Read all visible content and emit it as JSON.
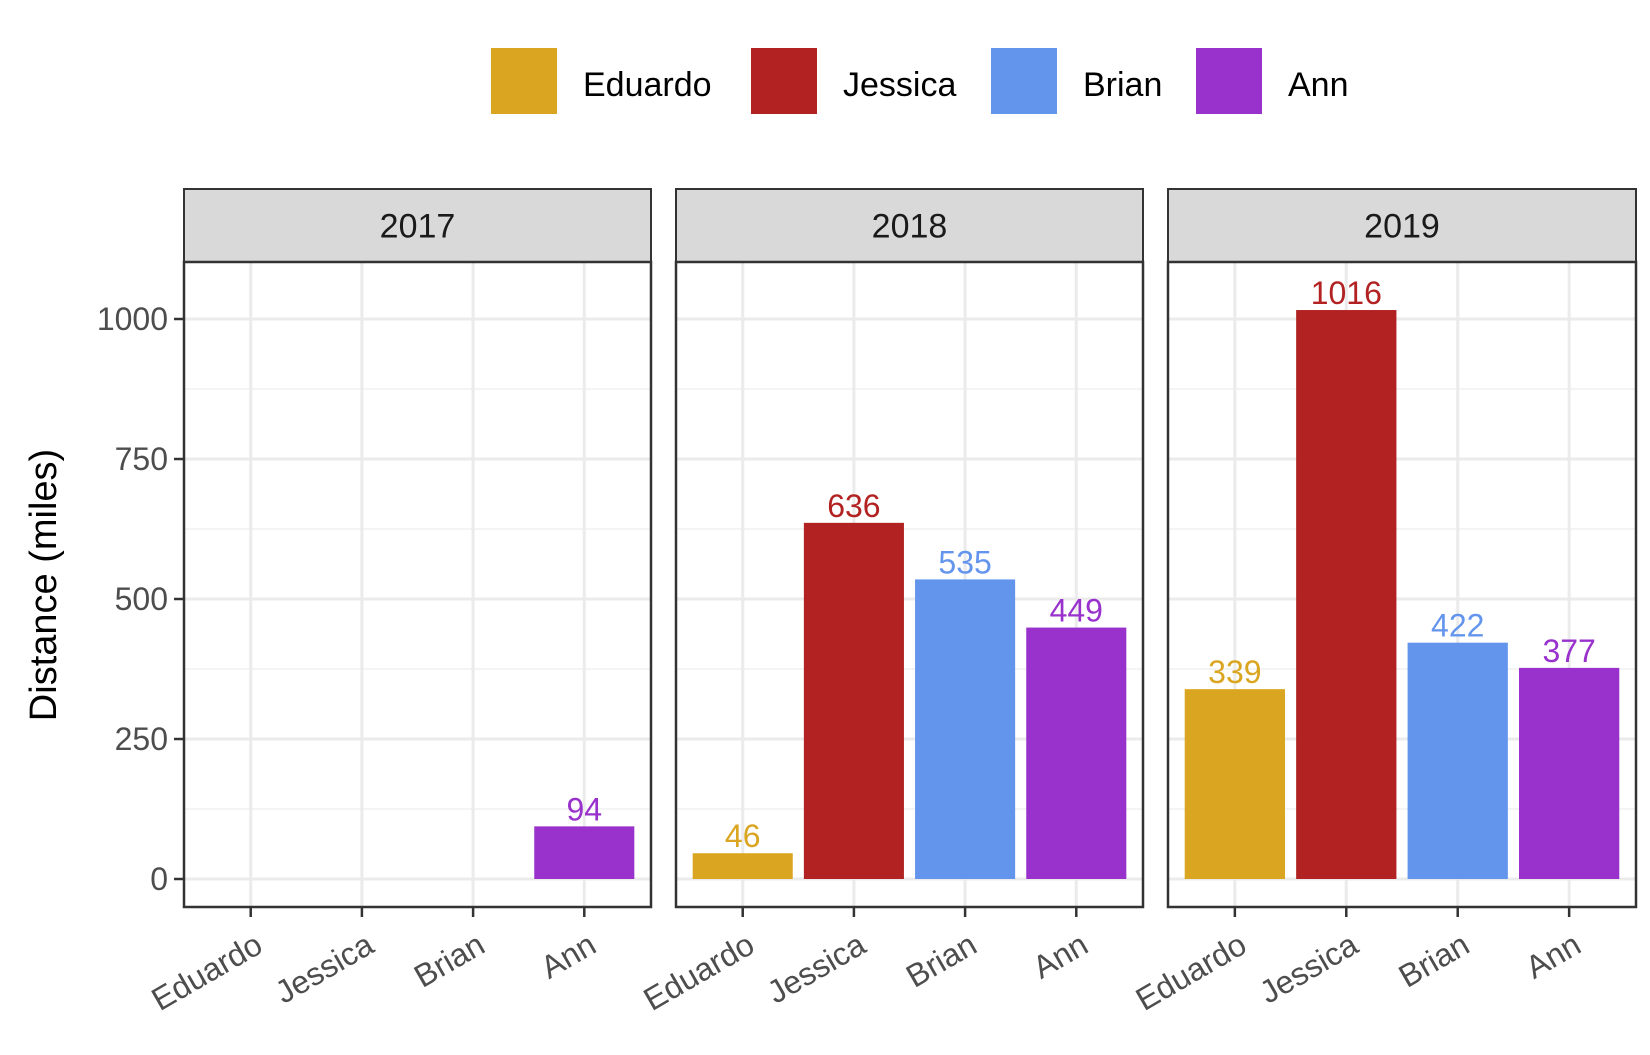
{
  "chart_data": {
    "type": "bar",
    "layout": "faceted",
    "ylabel": "Distance (miles)",
    "xlabel": "",
    "ylim": [
      0,
      1100
    ],
    "y_ticks": [
      0,
      250,
      500,
      750,
      1000
    ],
    "y_tick_labels": [
      "0",
      "250",
      "500",
      "750",
      "1000"
    ],
    "grid": true,
    "legend_position": "top",
    "categories": [
      "Eduardo",
      "Jessica",
      "Brian",
      "Ann"
    ],
    "legend": [
      {
        "name": "Eduardo",
        "color": "#DAA520"
      },
      {
        "name": "Jessica",
        "color": "#B22222"
      },
      {
        "name": "Brian",
        "color": "#6495ED"
      },
      {
        "name": "Ann",
        "color": "#9932CC"
      }
    ],
    "facets": [
      {
        "label": "2017",
        "values": [
          null,
          null,
          null,
          94
        ],
        "value_labels": [
          "",
          "",
          "",
          "94"
        ]
      },
      {
        "label": "2018",
        "values": [
          46,
          636,
          535,
          449
        ],
        "value_labels": [
          "46",
          "636",
          "535",
          "449"
        ]
      },
      {
        "label": "2019",
        "values": [
          339,
          1016,
          422,
          377
        ],
        "value_labels": [
          "339",
          "1016",
          "422",
          "377"
        ]
      }
    ]
  }
}
